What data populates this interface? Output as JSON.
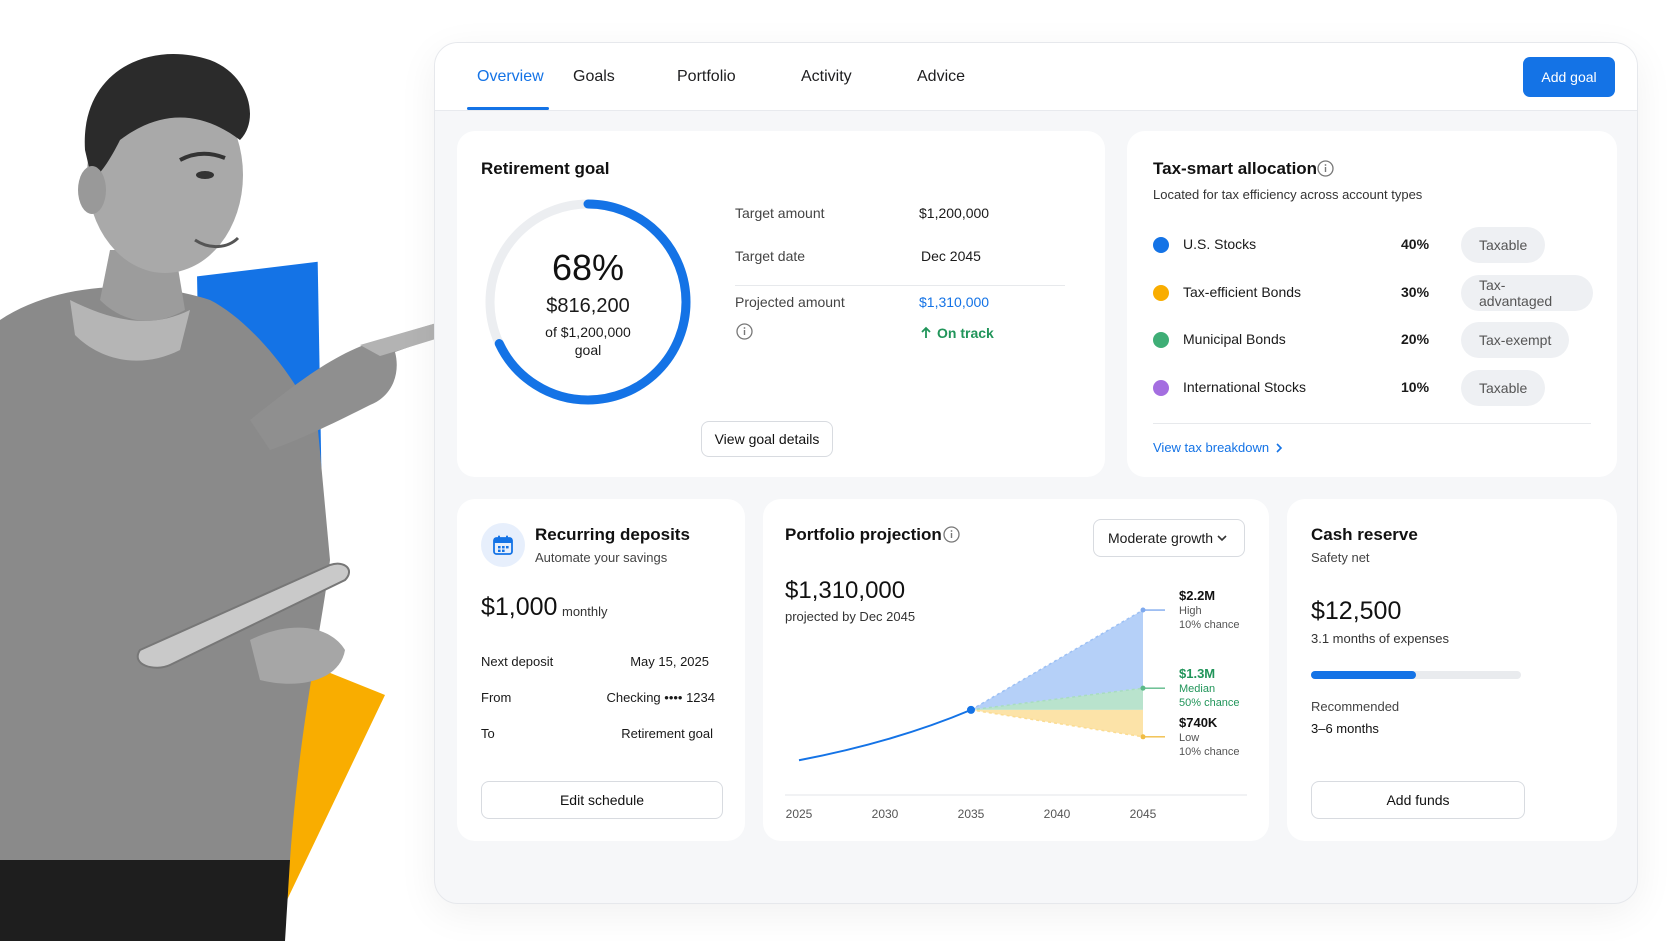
{
  "nav": {
    "tabs": [
      "Overview",
      "Goals",
      "Portfolio",
      "Activity",
      "Advice"
    ],
    "active_tab": "Overview",
    "add_goal_label": "Add goal"
  },
  "retirement": {
    "title": "Retirement goal",
    "percent_label": "68%",
    "progress_fraction": 0.68,
    "current_amount": "$816,200",
    "of_label": "of $1,200,000",
    "goal_word": "goal",
    "rows": [
      {
        "label": "Target amount",
        "value": "$1,200,000"
      },
      {
        "label": "Target date",
        "value": "Dec 2045"
      },
      {
        "label": "Projected amount",
        "value": "$1,310,000"
      }
    ],
    "status": "On track",
    "button": "View goal details"
  },
  "tax": {
    "title": "Tax-smart allocation",
    "subtitle": "Located for tax efficiency across account types",
    "items": [
      {
        "name": "U.S. Stocks",
        "pct": "40%",
        "tag": "Taxable",
        "color": "#1473e6"
      },
      {
        "name": "Tax-efficient Bonds",
        "pct": "30%",
        "tag": "Tax-advantaged",
        "color": "#f9ad00"
      },
      {
        "name": "Municipal Bonds",
        "pct": "20%",
        "tag": "Tax-exempt",
        "color": "#3fae76"
      },
      {
        "name": "International Stocks",
        "pct": "10%",
        "tag": "Taxable",
        "color": "#a46ee0"
      }
    ],
    "link": "View tax breakdown"
  },
  "recurring": {
    "title": "Recurring deposits",
    "subtitle": "Automate your savings",
    "amount": "$1,000",
    "period": "monthly",
    "rows": [
      {
        "label": "Next deposit",
        "value": "May 15, 2025"
      },
      {
        "label": "From",
        "value": "Checking •••• 1234"
      },
      {
        "label": "To",
        "value": "Retirement goal"
      }
    ],
    "button": "Edit schedule"
  },
  "projection": {
    "title": "Portfolio projection",
    "dropdown": "Moderate growth",
    "amount": "$1,310,000",
    "caption": "projected by Dec 2045"
  },
  "chart_data": {
    "type": "area",
    "x_ticks": [
      "2025",
      "2030",
      "2035",
      "2040",
      "2045"
    ],
    "history": {
      "x": [
        2025,
        2030,
        2035
      ],
      "y": [
        0.47,
        0.75,
        1.05
      ]
    },
    "fan_start": {
      "x": 2035,
      "y": 1.05
    },
    "ylim": [
      0.3,
      2.35
    ],
    "outcomes": [
      {
        "value": "$2.2M",
        "y": 2.2,
        "label": "High",
        "chance": "10% chance",
        "color": "#9cc0f5",
        "text_color": "#111111"
      },
      {
        "value": "$1.3M",
        "y": 1.3,
        "label": "Median",
        "chance": "50% chance",
        "color": "#a8dcc1",
        "text_color": "#21955a"
      },
      {
        "value": "$740K",
        "y": 0.74,
        "label": "Low",
        "chance": "10% chance",
        "color": "#fbdc92",
        "text_color": "#111111"
      }
    ]
  },
  "cash": {
    "title": "Cash reserve",
    "subtitle": "Safety net",
    "amount": "$12,500",
    "months_text": "3.1 months of expenses",
    "progress_fraction": 0.5,
    "recommended_label": "Recommended",
    "recommended_value": "3–6 months",
    "button": "Add funds"
  }
}
